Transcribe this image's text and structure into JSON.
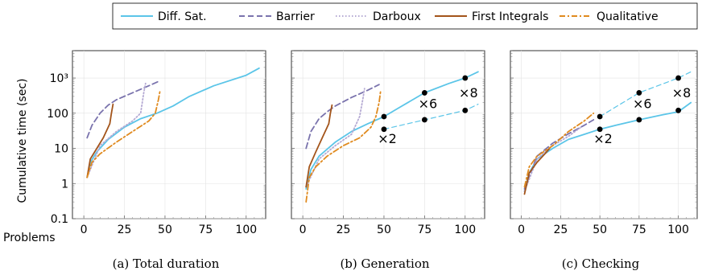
{
  "legend": [
    {
      "name": "Diff. Sat.",
      "color": "#5bc5e8",
      "dash": "solid"
    },
    {
      "name": "Barrier",
      "color": "#7a73ad",
      "dash": "dashed"
    },
    {
      "name": "Darboux",
      "color": "#b5aad3",
      "dash": "dotted"
    },
    {
      "name": "First Integrals",
      "color": "#a3541a",
      "dash": "solid"
    },
    {
      "name": "Qualitative",
      "color": "#e08a1e",
      "dash": "dashdot"
    }
  ],
  "ylabel": "Cumulative time (sec)",
  "xlabel": "Problems",
  "y_ticks": [
    "0.1",
    "1",
    "10",
    "100",
    "10³"
  ],
  "x_ticks": [
    "0",
    "25",
    "50",
    "75",
    "100"
  ],
  "chart_data": [
    {
      "type": "line",
      "caption": "(a) Total duration",
      "yscale": "log",
      "xlim": [
        -7,
        112
      ],
      "ylim": [
        0.1,
        6000
      ],
      "series": [
        {
          "name": "Diff. Sat.",
          "points": [
            [
              2,
              1.5
            ],
            [
              4,
              4
            ],
            [
              8,
              8
            ],
            [
              15,
              18
            ],
            [
              25,
              40
            ],
            [
              35,
              70
            ],
            [
              45,
              100
            ],
            [
              55,
              160
            ],
            [
              65,
              300
            ],
            [
              80,
              600
            ],
            [
              100,
              1200
            ],
            [
              108,
              1900
            ]
          ]
        },
        {
          "name": "Barrier",
          "points": [
            [
              2,
              20
            ],
            [
              5,
              45
            ],
            [
              10,
              100
            ],
            [
              15,
              170
            ],
            [
              20,
              240
            ],
            [
              30,
              380
            ],
            [
              40,
              600
            ],
            [
              46,
              800
            ]
          ]
        },
        {
          "name": "Darboux",
          "points": [
            [
              2,
              1.5
            ],
            [
              10,
              12
            ],
            [
              20,
              30
            ],
            [
              30,
              60
            ],
            [
              35,
              100
            ],
            [
              37,
              400
            ],
            [
              38,
              700
            ]
          ]
        },
        {
          "name": "First Integrals",
          "points": [
            [
              2,
              1.5
            ],
            [
              4,
              5
            ],
            [
              8,
              10
            ],
            [
              12,
              20
            ],
            [
              16,
              50
            ],
            [
              17,
              100
            ],
            [
              18,
              180
            ]
          ]
        },
        {
          "name": "Qualitative",
          "points": [
            [
              2,
              1.5
            ],
            [
              5,
              4
            ],
            [
              10,
              7
            ],
            [
              20,
              15
            ],
            [
              30,
              30
            ],
            [
              40,
              60
            ],
            [
              44,
              100
            ],
            [
              46,
              250
            ],
            [
              47,
              450
            ]
          ]
        }
      ],
      "annotations": []
    },
    {
      "type": "line",
      "caption": "(b) Generation",
      "yscale": "log",
      "xlim": [
        -7,
        112
      ],
      "ylim": [
        0.1,
        6000
      ],
      "series": [
        {
          "name": "Diff. Sat.",
          "points": [
            [
              2,
              0.7
            ],
            [
              5,
              2.5
            ],
            [
              10,
              6
            ],
            [
              20,
              15
            ],
            [
              30,
              30
            ],
            [
              40,
              50
            ],
            [
              50,
              80
            ],
            [
              60,
              150
            ],
            [
              75,
              380
            ],
            [
              90,
              700
            ],
            [
              100,
              1000
            ],
            [
              108,
              1500
            ]
          ]
        },
        {
          "name": "Diff. Sat.",
          "style": "dashed",
          "points": [
            [
              50,
              35
            ],
            [
              75,
              65
            ],
            [
              100,
              120
            ],
            [
              108,
              180
            ]
          ]
        },
        {
          "name": "Barrier",
          "points": [
            [
              2,
              10
            ],
            [
              5,
              30
            ],
            [
              10,
              70
            ],
            [
              15,
              110
            ],
            [
              20,
              160
            ],
            [
              30,
              280
            ],
            [
              40,
              450
            ],
            [
              47,
              650
            ]
          ]
        },
        {
          "name": "Darboux",
          "points": [
            [
              2,
              0.8
            ],
            [
              10,
              5
            ],
            [
              20,
              12
            ],
            [
              30,
              25
            ],
            [
              35,
              80
            ],
            [
              37,
              250
            ],
            [
              38,
              500
            ]
          ]
        },
        {
          "name": "First Integrals",
          "points": [
            [
              2,
              0.8
            ],
            [
              4,
              3
            ],
            [
              8,
              8
            ],
            [
              12,
              20
            ],
            [
              16,
              50
            ],
            [
              17,
              100
            ],
            [
              18,
              170
            ]
          ]
        },
        {
          "name": "Qualitative",
          "points": [
            [
              2,
              0.3
            ],
            [
              4,
              1.5
            ],
            [
              8,
              3
            ],
            [
              15,
              6
            ],
            [
              25,
              12
            ],
            [
              35,
              20
            ],
            [
              42,
              40
            ],
            [
              45,
              80
            ],
            [
              47,
              200
            ],
            [
              48,
              450
            ]
          ]
        }
      ],
      "annotations": [
        {
          "text": "×2",
          "x": 52,
          "y": 14,
          "pair": [
            [
              50,
              35
            ],
            [
              50,
              80
            ]
          ]
        },
        {
          "text": "×6",
          "x": 77,
          "y": 140,
          "pair": [
            [
              75,
              65
            ],
            [
              75,
              380
            ]
          ]
        },
        {
          "text": "×8",
          "x": 102,
          "y": 280,
          "pair": [
            [
              100,
              120
            ],
            [
              100,
              1000
            ]
          ]
        }
      ]
    },
    {
      "type": "line",
      "caption": "(c) Checking",
      "yscale": "log",
      "xlim": [
        -7,
        112
      ],
      "ylim": [
        0.1,
        6000
      ],
      "series": [
        {
          "name": "Diff. Sat.",
          "points": [
            [
              2,
              0.6
            ],
            [
              5,
              2
            ],
            [
              10,
              5
            ],
            [
              20,
              10
            ],
            [
              30,
              18
            ],
            [
              40,
              25
            ],
            [
              50,
              35
            ],
            [
              60,
              45
            ],
            [
              75,
              65
            ],
            [
              90,
              90
            ],
            [
              100,
              110
            ],
            [
              108,
              200
            ]
          ]
        },
        {
          "name": "Diff. Sat.",
          "style": "dashed",
          "points": [
            [
              50,
              80
            ],
            [
              75,
              380
            ],
            [
              100,
              1000
            ],
            [
              108,
              1500
            ]
          ]
        },
        {
          "name": "Barrier",
          "points": [
            [
              2,
              0.7
            ],
            [
              10,
              6
            ],
            [
              20,
              14
            ],
            [
              30,
              26
            ],
            [
              40,
              45
            ],
            [
              46,
              65
            ]
          ]
        },
        {
          "name": "Darboux",
          "points": [
            [
              2,
              0.6
            ],
            [
              10,
              5
            ],
            [
              20,
              12
            ],
            [
              30,
              22
            ],
            [
              38,
              40
            ]
          ]
        },
        {
          "name": "First Integrals",
          "points": [
            [
              2,
              0.5
            ],
            [
              5,
              2
            ],
            [
              10,
              4
            ],
            [
              15,
              7
            ],
            [
              18,
              10
            ]
          ]
        },
        {
          "name": "Qualitative",
          "points": [
            [
              2,
              0.8
            ],
            [
              5,
              3
            ],
            [
              10,
              6
            ],
            [
              20,
              12
            ],
            [
              30,
              30
            ],
            [
              40,
              60
            ],
            [
              46,
              100
            ]
          ]
        }
      ],
      "annotations": [
        {
          "text": "×2",
          "x": 52,
          "y": 14,
          "pair": [
            [
              50,
              35
            ],
            [
              50,
              80
            ]
          ]
        },
        {
          "text": "×6",
          "x": 77,
          "y": 140,
          "pair": [
            [
              75,
              65
            ],
            [
              75,
              380
            ]
          ]
        },
        {
          "text": "×8",
          "x": 102,
          "y": 280,
          "pair": [
            [
              100,
              120
            ],
            [
              100,
              1000
            ]
          ]
        }
      ]
    }
  ]
}
